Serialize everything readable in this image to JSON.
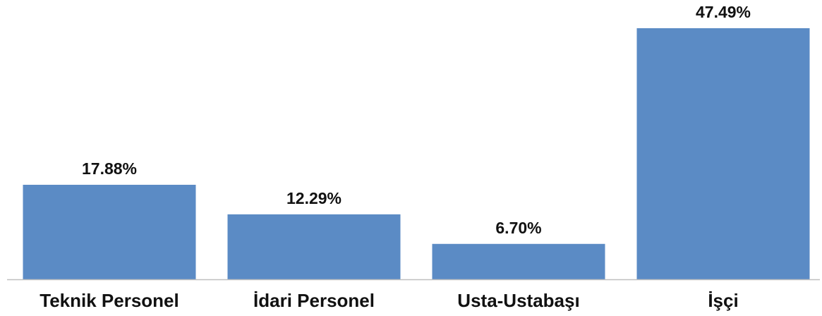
{
  "chart_data": {
    "type": "bar",
    "categories": [
      "Teknik Personel",
      "İdari Personel",
      "Usta-Ustabaşı",
      "İşçi"
    ],
    "values": [
      17.88,
      12.29,
      6.7,
      47.49
    ],
    "value_labels": [
      "17.88%",
      "12.29%",
      "6.70%",
      "47.49%"
    ],
    "color": "#5b8bc5"
  }
}
